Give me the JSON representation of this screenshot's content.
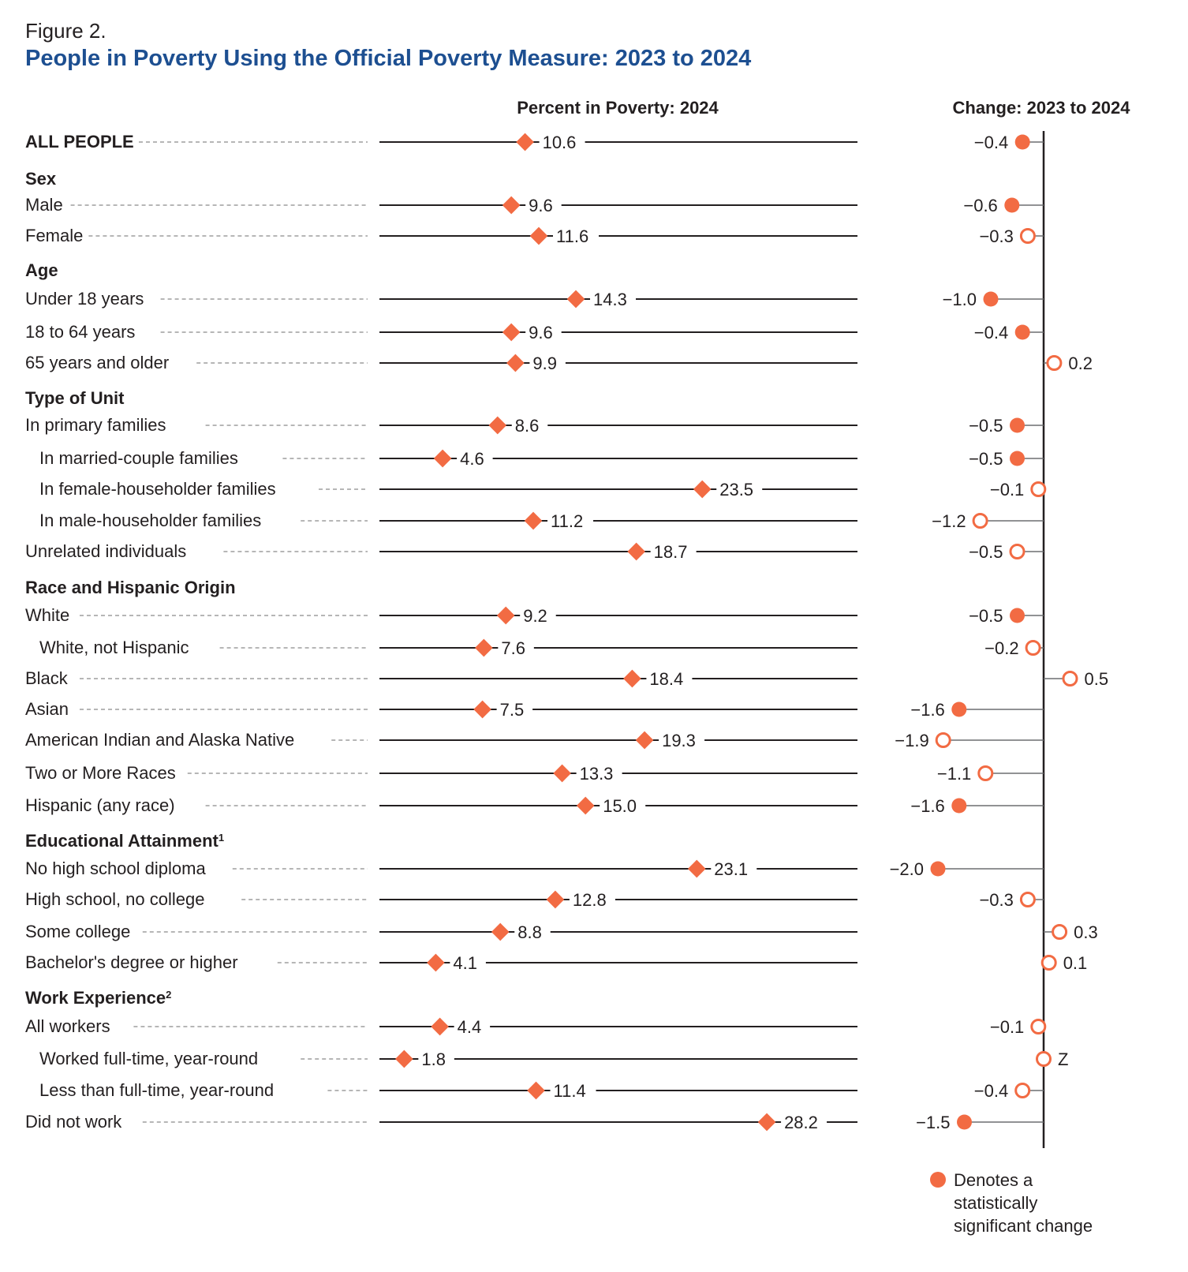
{
  "figure_label": "Figure 2.",
  "title": "People in Poverty Using the Official Poverty Measure: 2023 to 2024",
  "colors": {
    "marker": "#f26b43",
    "title": "#1d4f91",
    "text": "#231f20"
  },
  "chart_data": {
    "type": "dot-plot",
    "left_panel": {
      "title": "Percent in Poverty: 2024",
      "xlim": [
        0,
        34.8
      ]
    },
    "right_panel": {
      "title": "Change: 2023 to 2024",
      "zero_axis": 0
    },
    "legend": {
      "filled_marker": "Denotes a statistically significant change",
      "lines": [
        "Denotes a",
        "statistically",
        "significant change"
      ]
    },
    "rows": [
      {
        "label": "ALL PEOPLE",
        "kind": "total",
        "value": 10.6,
        "value_label": "10.6",
        "change": -0.4,
        "change_label": "−0.4",
        "significant": true
      },
      {
        "label": "Sex",
        "kind": "section"
      },
      {
        "label": "Male",
        "value": 9.6,
        "value_label": "9.6",
        "change": -0.6,
        "change_label": "−0.6",
        "significant": true
      },
      {
        "label": "Female",
        "value": 11.6,
        "value_label": "11.6",
        "change": -0.3,
        "change_label": "−0.3",
        "significant": false
      },
      {
        "label": "Age",
        "kind": "section"
      },
      {
        "label": "Under 18 years",
        "value": 14.3,
        "value_label": "14.3",
        "change": -1.0,
        "change_label": "−1.0",
        "significant": true
      },
      {
        "label": "18 to 64 years",
        "value": 9.6,
        "value_label": "9.6",
        "change": -0.4,
        "change_label": "−0.4",
        "significant": true
      },
      {
        "label": "65 years and older",
        "value": 9.9,
        "value_label": "9.9",
        "change": 0.2,
        "change_label": "0.2",
        "significant": false
      },
      {
        "label": "Type of Unit",
        "kind": "section"
      },
      {
        "label": "In primary families",
        "value": 8.6,
        "value_label": "8.6",
        "change": -0.5,
        "change_label": "−0.5",
        "significant": true
      },
      {
        "label": "In married-couple families",
        "indent": true,
        "value": 4.6,
        "value_label": "4.6",
        "change": -0.5,
        "change_label": "−0.5",
        "significant": true
      },
      {
        "label": "In female-householder families",
        "indent": true,
        "value": 23.5,
        "value_label": "23.5",
        "change": -0.1,
        "change_label": "−0.1",
        "significant": false
      },
      {
        "label": "In male-householder families",
        "indent": true,
        "value": 11.2,
        "value_label": "11.2",
        "change": -1.2,
        "change_label": "−1.2",
        "significant": false
      },
      {
        "label": "Unrelated individuals",
        "value": 18.7,
        "value_label": "18.7",
        "change": -0.5,
        "change_label": "−0.5",
        "significant": false
      },
      {
        "label": "Race and Hispanic Origin",
        "kind": "section"
      },
      {
        "label": "White",
        "value": 9.2,
        "value_label": "9.2",
        "change": -0.5,
        "change_label": "−0.5",
        "significant": true
      },
      {
        "label": "White, not Hispanic",
        "indent": true,
        "value": 7.6,
        "value_label": "7.6",
        "change": -0.2,
        "change_label": "−0.2",
        "significant": false
      },
      {
        "label": "Black",
        "value": 18.4,
        "value_label": "18.4",
        "change": 0.5,
        "change_label": "0.5",
        "significant": false
      },
      {
        "label": "Asian",
        "value": 7.5,
        "value_label": "7.5",
        "change": -1.6,
        "change_label": "−1.6",
        "significant": true
      },
      {
        "label": "American Indian and Alaska Native",
        "value": 19.3,
        "value_label": "19.3",
        "change": -1.9,
        "change_label": "−1.9",
        "significant": false
      },
      {
        "label": "Two or More Races",
        "value": 13.3,
        "value_label": "13.3",
        "change": -1.1,
        "change_label": "−1.1",
        "significant": false
      },
      {
        "label": "Hispanic (any race)",
        "value": 15.0,
        "value_label": "15.0",
        "change": -1.6,
        "change_label": "−1.6",
        "significant": true
      },
      {
        "label": "Educational Attainment",
        "footnote": "1",
        "kind": "section"
      },
      {
        "label": "No high school diploma",
        "value": 23.1,
        "value_label": "23.1",
        "change": -2.0,
        "change_label": "−2.0",
        "significant": true
      },
      {
        "label": "High school, no college",
        "value": 12.8,
        "value_label": "12.8",
        "change": -0.3,
        "change_label": "−0.3",
        "significant": false
      },
      {
        "label": "Some college",
        "value": 8.8,
        "value_label": "8.8",
        "change": 0.3,
        "change_label": "0.3",
        "significant": false
      },
      {
        "label": "Bachelor's degree or higher",
        "value": 4.1,
        "value_label": "4.1",
        "change": 0.1,
        "change_label": "0.1",
        "significant": false
      },
      {
        "label": "Work Experience",
        "footnote": "2",
        "kind": "section"
      },
      {
        "label": "All workers",
        "value": 4.4,
        "value_label": "4.4",
        "change": -0.1,
        "change_label": "−0.1",
        "significant": false
      },
      {
        "label": "Worked full-time, year-round",
        "indent": true,
        "value": 1.8,
        "value_label": "1.8",
        "change": 0,
        "change_label": "Z",
        "significant": false
      },
      {
        "label": "Less than full-time, year-round",
        "indent": true,
        "value": 11.4,
        "value_label": "11.4",
        "change": -0.4,
        "change_label": "−0.4",
        "significant": false
      },
      {
        "label": "Did not work",
        "value": 28.2,
        "value_label": "28.2",
        "change": -1.5,
        "change_label": "−1.5",
        "significant": true
      }
    ]
  }
}
